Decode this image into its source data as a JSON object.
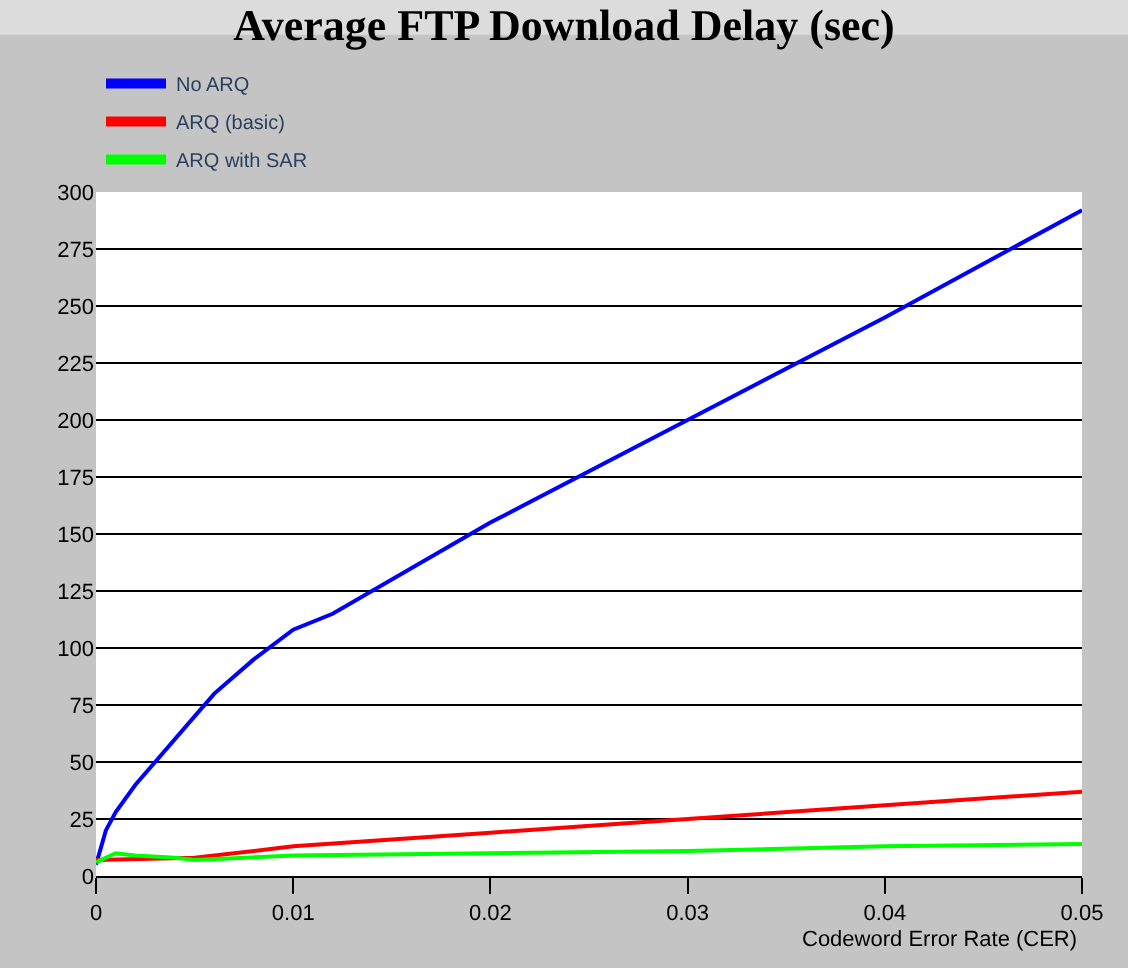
{
  "chart_data": {
    "type": "line",
    "title": "Average FTP Download Delay (sec)",
    "xlabel": "Codeword Error Rate (CER)",
    "series": [
      {
        "name": "No ARQ",
        "color": "#0000ff",
        "x": [
          0,
          0.0005,
          0.001,
          0.002,
          0.003,
          0.005,
          0.006,
          0.008,
          0.01,
          0.012,
          0.02,
          0.03,
          0.04,
          0.05
        ],
        "values": [
          5,
          20,
          28,
          40,
          50,
          70,
          80,
          95,
          108,
          115,
          155,
          200,
          245,
          292
        ]
      },
      {
        "name": "ARQ (basic)",
        "color": "#ff0000",
        "x": [
          0,
          0.005,
          0.01,
          0.02,
          0.03,
          0.04,
          0.05
        ],
        "values": [
          7,
          8,
          13,
          19,
          25,
          31,
          37
        ]
      },
      {
        "name": "ARQ with SAR",
        "color": "#00ff00",
        "x": [
          0,
          0.001,
          0.002,
          0.004,
          0.005,
          0.01,
          0.02,
          0.03,
          0.04,
          0.05
        ],
        "values": [
          6,
          10,
          9,
          8,
          7,
          9,
          10,
          11,
          13,
          14
        ]
      }
    ],
    "xlim": [
      0,
      0.05
    ],
    "xticks": [
      0,
      0.01,
      0.02,
      0.03,
      0.04,
      0.05
    ],
    "ylim": [
      0,
      300
    ],
    "yticks": [
      0,
      25,
      50,
      75,
      100,
      125,
      150,
      175,
      200,
      225,
      250,
      275,
      300
    ],
    "grid": "y",
    "legend": "top left",
    "marker": "none",
    "line_style": "solid"
  }
}
